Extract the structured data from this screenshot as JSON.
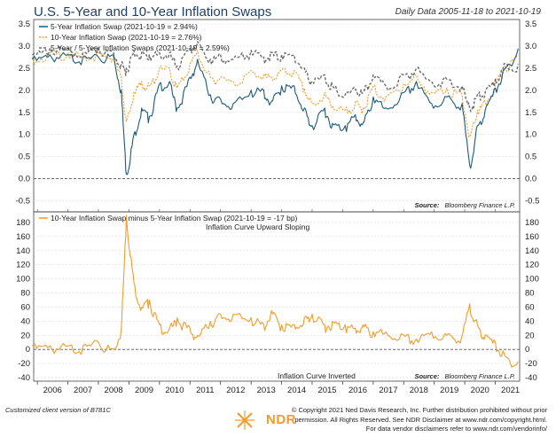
{
  "header": {
    "title": "U.S. 5-Year and 10-Year Inflation Swaps",
    "date_range": "Daily Data 2005-11-18 to 2021-10-19"
  },
  "chart_data": [
    {
      "type": "line",
      "title": "U.S. 5-Year and 10-Year Inflation Swaps",
      "ylim": [
        -0.75,
        3.6
      ],
      "yticks": [
        "3.5",
        "3.0",
        "2.5",
        "2.0",
        "1.5",
        "1.0",
        "0.5",
        "0.0",
        "-0.5"
      ],
      "x": [
        "2005-11",
        "2006-06",
        "2007-01",
        "2007-07",
        "2008-01",
        "2008-07",
        "2008-10",
        "2008-12",
        "2009-03",
        "2009-06",
        "2009-09",
        "2010-01",
        "2010-05",
        "2010-08",
        "2011-01",
        "2011-04",
        "2011-09",
        "2012-01",
        "2012-06",
        "2013-01",
        "2013-06",
        "2013-09",
        "2014-01",
        "2014-06",
        "2014-10",
        "2015-01",
        "2015-06",
        "2015-09",
        "2016-02",
        "2016-06",
        "2016-09",
        "2017-01",
        "2017-06",
        "2018-01",
        "2018-06",
        "2018-12",
        "2019-06",
        "2019-12",
        "2020-03",
        "2020-06",
        "2020-09",
        "2021-01",
        "2021-05",
        "2021-10"
      ],
      "series": [
        {
          "name": "5-Year Inflation Swap (2021-10-19 = 2.94%)",
          "color": "#1a5a7a",
          "values": [
            2.7,
            2.8,
            2.8,
            2.75,
            2.75,
            2.8,
            2.0,
            0.1,
            1.0,
            1.6,
            1.4,
            2.15,
            2.2,
            1.6,
            2.3,
            2.7,
            1.9,
            1.8,
            1.7,
            2.0,
            2.0,
            1.75,
            2.1,
            2.1,
            1.6,
            1.2,
            1.6,
            1.25,
            1.2,
            1.45,
            1.25,
            1.85,
            1.6,
            1.95,
            2.2,
            1.7,
            1.85,
            1.7,
            0.3,
            1.2,
            1.55,
            2.05,
            2.5,
            2.94
          ]
        },
        {
          "name": "10-Year Inflation Swap (2021-10-19 = 2.76%)",
          "color": "#f39c2a",
          "values": [
            2.75,
            2.85,
            2.85,
            2.8,
            2.85,
            2.8,
            2.3,
            1.3,
            1.95,
            2.2,
            2.1,
            2.5,
            2.5,
            2.05,
            2.6,
            2.9,
            2.3,
            2.3,
            2.2,
            2.45,
            2.35,
            2.3,
            2.45,
            2.45,
            2.05,
            1.7,
            1.95,
            1.65,
            1.55,
            1.75,
            1.6,
            2.1,
            1.85,
            2.15,
            2.35,
            1.95,
            2.05,
            1.9,
            0.95,
            1.55,
            1.75,
            2.15,
            2.55,
            2.76
          ]
        },
        {
          "name": "5-Year / 5-Year Inflation Swaps (2021-10-19 = 2.59%)",
          "color": "#6b6b6b",
          "values": [
            2.8,
            2.95,
            2.95,
            2.85,
            2.95,
            2.85,
            2.6,
            2.5,
            2.9,
            2.85,
            2.8,
            2.85,
            2.85,
            2.55,
            2.95,
            3.1,
            2.7,
            2.8,
            2.7,
            2.9,
            2.75,
            2.85,
            2.8,
            2.8,
            2.5,
            2.2,
            2.35,
            2.1,
            1.9,
            2.05,
            1.95,
            2.35,
            2.1,
            2.35,
            2.5,
            2.2,
            2.25,
            2.1,
            1.6,
            1.9,
            1.95,
            2.25,
            2.6,
            2.59
          ]
        }
      ]
    },
    {
      "type": "line",
      "title": "10-Year Inflation Swap minus 5-Year Inflation Swap",
      "ylim": [
        -45,
        195
      ],
      "yticks": [
        "180",
        "160",
        "140",
        "120",
        "100",
        "80",
        "60",
        "40",
        "20",
        "0",
        "-20",
        "-40"
      ],
      "x": [
        "2005-11",
        "2006-06",
        "2007-01",
        "2007-07",
        "2008-01",
        "2008-07",
        "2008-10",
        "2008-12",
        "2009-03",
        "2009-06",
        "2009-09",
        "2010-01",
        "2010-05",
        "2010-08",
        "2011-01",
        "2011-04",
        "2011-09",
        "2012-01",
        "2012-06",
        "2013-01",
        "2013-06",
        "2013-09",
        "2014-01",
        "2014-06",
        "2014-10",
        "2015-01",
        "2015-06",
        "2015-09",
        "2016-02",
        "2016-06",
        "2016-09",
        "2017-01",
        "2017-06",
        "2018-01",
        "2018-06",
        "2018-12",
        "2019-06",
        "2019-12",
        "2020-03",
        "2020-06",
        "2020-09",
        "2021-01",
        "2021-05",
        "2021-10"
      ],
      "series": [
        {
          "name": "10-Year Inflation Swap minus 5-Year Inflation Swap (2021-10-19 = -17 bp)",
          "color": "#f39c2a",
          "values": [
            5,
            5,
            5,
            5,
            10,
            0,
            30,
            190,
            95,
            60,
            70,
            35,
            30,
            45,
            30,
            20,
            40,
            50,
            50,
            45,
            35,
            55,
            35,
            35,
            45,
            50,
            35,
            40,
            35,
            30,
            35,
            25,
            25,
            20,
            15,
            25,
            20,
            20,
            65,
            35,
            20,
            10,
            -10,
            -17
          ]
        }
      ],
      "annotations": [
        "Inflation Curve Upward Sloping",
        "Inflation Curve Inverted"
      ]
    }
  ],
  "x_axis_labels": [
    "2006",
    "2007",
    "2008",
    "2009",
    "2010",
    "2011",
    "2012",
    "2013",
    "2014",
    "2015",
    "2016",
    "2017",
    "2018",
    "2019",
    "2020",
    "2021"
  ],
  "source": {
    "label": "Source:",
    "text": "Bloomberg Finance L.P."
  },
  "footer": {
    "left": "Customized client version of B781C",
    "copyright_1": "© Copyright 2021 Ned Davis Research, Inc. Further distribution prohibited without prior",
    "copyright_2": "permission. All Rights Reserved. See NDR Disclaimer at www.ndr.com/copyright.html.",
    "copyright_3": "For data vendor disclaimers refer to www.ndr.com/vendorinfo/",
    "logo_text": "NDR"
  }
}
